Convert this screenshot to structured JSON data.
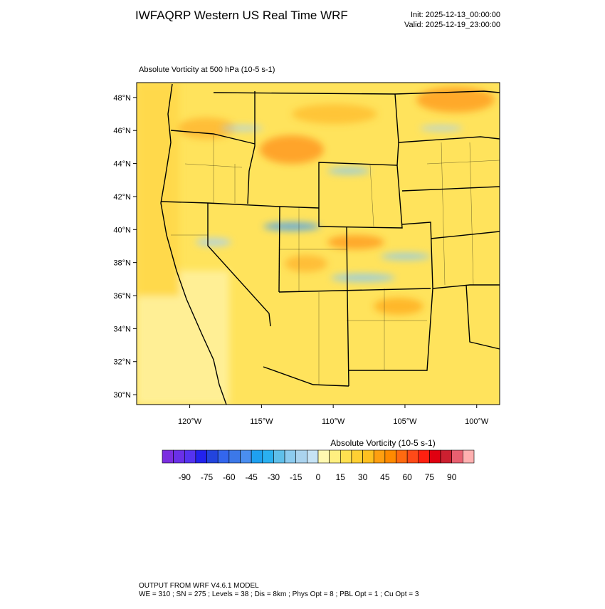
{
  "header": {
    "title": "IWFAQRP Western US Real Time WRF",
    "init": "Init: 2025-12-13_00:00:00",
    "valid": "Valid: 2025-12-19_23:00:00"
  },
  "map": {
    "subtitle": "Absolute Vorticity at 500 hPa   (10-5 s-1)",
    "lonlim": [
      -123.7,
      -98.4
    ],
    "latlim": [
      29.4,
      48.9
    ],
    "latticks": [
      {
        "value": 48,
        "label": "48°N"
      },
      {
        "value": 46,
        "label": "46°N"
      },
      {
        "value": 44,
        "label": "44°N"
      },
      {
        "value": 42,
        "label": "42°N"
      },
      {
        "value": 40,
        "label": "40°N"
      },
      {
        "value": 38,
        "label": "38°N"
      },
      {
        "value": 36,
        "label": "36°N"
      },
      {
        "value": 34,
        "label": "34°N"
      },
      {
        "value": 32,
        "label": "32°N"
      },
      {
        "value": 30,
        "label": "30°N"
      }
    ],
    "lonticks": [
      {
        "value": -120,
        "label": "120°W"
      },
      {
        "value": -115,
        "label": "115°W"
      },
      {
        "value": -110,
        "label": "110°W"
      },
      {
        "value": -105,
        "label": "105°W"
      },
      {
        "value": -100,
        "label": "100°W"
      }
    ]
  },
  "colorbar": {
    "title": "Absolute Vorticity  (10-5 s-1)",
    "range": [
      -105,
      105
    ],
    "ticks": [
      -90,
      -75,
      -60,
      -45,
      -30,
      -15,
      0,
      15,
      30,
      45,
      60,
      75,
      90
    ],
    "colors": [
      "#7b2ee0",
      "#6a30e8",
      "#5533f0",
      "#2222ee",
      "#2244dd",
      "#3366ee",
      "#3c78e8",
      "#4a8ef0",
      "#1ea0f0",
      "#2ab0f0",
      "#5fbfea",
      "#8ccbef",
      "#aad3ee",
      "#c6e3f5",
      "#fff8b0",
      "#ffef80",
      "#ffe050",
      "#ffd033",
      "#ffc020",
      "#ff9f10",
      "#ff8a00",
      "#ff6a10",
      "#ff4a18",
      "#ff2010",
      "#e00010",
      "#cc2030",
      "#e86070",
      "#ffb0b0"
    ]
  },
  "footer": {
    "line1": "OUTPUT FROM WRF V4.6.1 MODEL",
    "line2": "WE = 310 ; SN = 275 ; Levels = 38 ; Dis = 8km ; Phys Opt = 8 ; PBL Opt = 1 ; Cu Opt = 3"
  }
}
